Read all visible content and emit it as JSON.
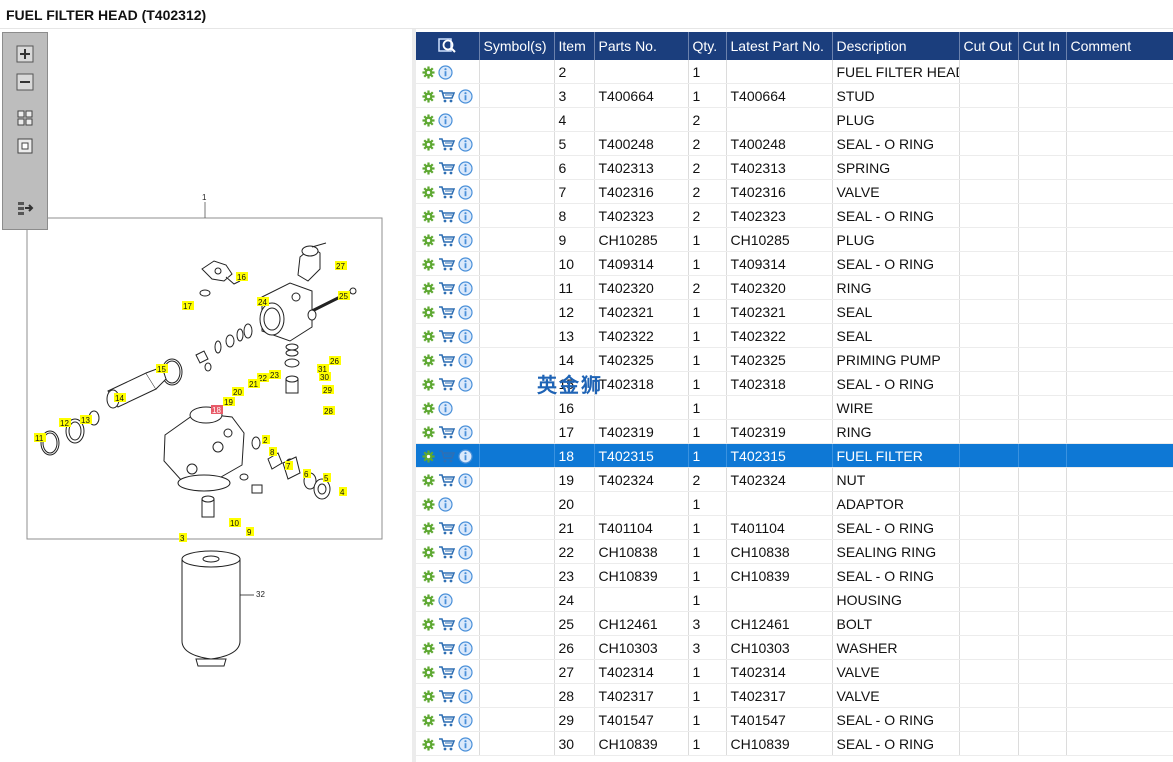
{
  "page_title": "FUEL FILTER HEAD (T402312)",
  "zoom_toolbar": {
    "buttons": [
      "zoom-in-icon",
      "zoom-out-icon",
      "fit-page-icon",
      "actual-size-icon",
      "export-icon"
    ]
  },
  "diagram": {
    "assembly_callout": "1",
    "filter_callout": "32",
    "callouts": [
      "16",
      "17",
      "27",
      "25",
      "24",
      "26",
      "31",
      "30",
      "29",
      "28",
      "15",
      "22",
      "23",
      "21",
      "20",
      "19",
      "18",
      "14",
      "13",
      "12",
      "11",
      "2",
      "8",
      "7",
      "6",
      "5",
      "4",
      "10",
      "9",
      "3"
    ],
    "highlighted_callout": "18",
    "colors": {
      "callout_bg": "#ffff00",
      "highlight_bg": "#e85a68",
      "line": "#222222"
    }
  },
  "table": {
    "columns": [
      "",
      "Symbol(s)",
      "Item",
      "Parts No.",
      "Qty.",
      "Latest Part No.",
      "Description",
      "Cut Out",
      "Cut In",
      "Comment"
    ],
    "header_icon": "search-parts-icon",
    "rows": [
      {
        "cart": false,
        "item": "2",
        "parts_no": "",
        "qty": "1",
        "latest": "",
        "desc": "FUEL FILTER HEAD",
        "selected": false
      },
      {
        "cart": true,
        "item": "3",
        "parts_no": "T400664",
        "qty": "1",
        "latest": "T400664",
        "desc": "STUD",
        "selected": false
      },
      {
        "cart": false,
        "item": "4",
        "parts_no": "",
        "qty": "2",
        "latest": "",
        "desc": "PLUG",
        "selected": false
      },
      {
        "cart": true,
        "item": "5",
        "parts_no": "T400248",
        "qty": "2",
        "latest": "T400248",
        "desc": "SEAL - O RING",
        "selected": false
      },
      {
        "cart": true,
        "item": "6",
        "parts_no": "T402313",
        "qty": "2",
        "latest": "T402313",
        "desc": "SPRING",
        "selected": false
      },
      {
        "cart": true,
        "item": "7",
        "parts_no": "T402316",
        "qty": "2",
        "latest": "T402316",
        "desc": "VALVE",
        "selected": false
      },
      {
        "cart": true,
        "item": "8",
        "parts_no": "T402323",
        "qty": "2",
        "latest": "T402323",
        "desc": "SEAL - O RING",
        "selected": false
      },
      {
        "cart": true,
        "item": "9",
        "parts_no": "CH10285",
        "qty": "1",
        "latest": "CH10285",
        "desc": "PLUG",
        "selected": false
      },
      {
        "cart": true,
        "item": "10",
        "parts_no": "T409314",
        "qty": "1",
        "latest": "T409314",
        "desc": "SEAL - O RING",
        "selected": false
      },
      {
        "cart": true,
        "item": "11",
        "parts_no": "T402320",
        "qty": "2",
        "latest": "T402320",
        "desc": "RING",
        "selected": false
      },
      {
        "cart": true,
        "item": "12",
        "parts_no": "T402321",
        "qty": "1",
        "latest": "T402321",
        "desc": "SEAL",
        "selected": false
      },
      {
        "cart": true,
        "item": "13",
        "parts_no": "T402322",
        "qty": "1",
        "latest": "T402322",
        "desc": "SEAL",
        "selected": false
      },
      {
        "cart": true,
        "item": "14",
        "parts_no": "T402325",
        "qty": "1",
        "latest": "T402325",
        "desc": "PRIMING PUMP",
        "selected": false
      },
      {
        "cart": true,
        "item": "15",
        "parts_no": "T402318",
        "qty": "1",
        "latest": "T402318",
        "desc": "SEAL - O RING",
        "selected": false
      },
      {
        "cart": false,
        "item": "16",
        "parts_no": "",
        "qty": "1",
        "latest": "",
        "desc": "WIRE",
        "selected": false
      },
      {
        "cart": true,
        "item": "17",
        "parts_no": "T402319",
        "qty": "1",
        "latest": "T402319",
        "desc": "RING",
        "selected": false
      },
      {
        "cart": true,
        "item": "18",
        "parts_no": "T402315",
        "qty": "1",
        "latest": "T402315",
        "desc": "FUEL FILTER",
        "selected": true
      },
      {
        "cart": true,
        "item": "19",
        "parts_no": "T402324",
        "qty": "2",
        "latest": "T402324",
        "desc": "NUT",
        "selected": false
      },
      {
        "cart": false,
        "item": "20",
        "parts_no": "",
        "qty": "1",
        "latest": "",
        "desc": "ADAPTOR",
        "selected": false
      },
      {
        "cart": true,
        "item": "21",
        "parts_no": "T401104",
        "qty": "1",
        "latest": "T401104",
        "desc": "SEAL - O RING",
        "selected": false
      },
      {
        "cart": true,
        "item": "22",
        "parts_no": "CH10838",
        "qty": "1",
        "latest": "CH10838",
        "desc": "SEALING RING",
        "selected": false
      },
      {
        "cart": true,
        "item": "23",
        "parts_no": "CH10839",
        "qty": "1",
        "latest": "CH10839",
        "desc": "SEAL - O RING",
        "selected": false
      },
      {
        "cart": false,
        "item": "24",
        "parts_no": "",
        "qty": "1",
        "latest": "",
        "desc": "HOUSING",
        "selected": false
      },
      {
        "cart": true,
        "item": "25",
        "parts_no": "CH12461",
        "qty": "3",
        "latest": "CH12461",
        "desc": "BOLT",
        "selected": false
      },
      {
        "cart": true,
        "item": "26",
        "parts_no": "CH10303",
        "qty": "3",
        "latest": "CH10303",
        "desc": "WASHER",
        "selected": false
      },
      {
        "cart": true,
        "item": "27",
        "parts_no": "T402314",
        "qty": "1",
        "latest": "T402314",
        "desc": "VALVE",
        "selected": false
      },
      {
        "cart": true,
        "item": "28",
        "parts_no": "T402317",
        "qty": "1",
        "latest": "T402317",
        "desc": "VALVE",
        "selected": false
      },
      {
        "cart": true,
        "item": "29",
        "parts_no": "T401547",
        "qty": "1",
        "latest": "T401547",
        "desc": "SEAL - O RING",
        "selected": false
      },
      {
        "cart": true,
        "item": "30",
        "parts_no": "CH10839",
        "qty": "1",
        "latest": "CH10839",
        "desc": "SEAL - O RING",
        "selected": false
      }
    ],
    "row_icons": {
      "settings": "gear-icon",
      "cart": "cart-icon",
      "info": "info-icon"
    },
    "colors": {
      "header_bg": "#1b3e7d",
      "selected_bg": "#0e78d5",
      "gear": "#5ea832",
      "cart": "#2f6fb4",
      "info": "#4a90d9"
    }
  },
  "watermark": "英金狮"
}
